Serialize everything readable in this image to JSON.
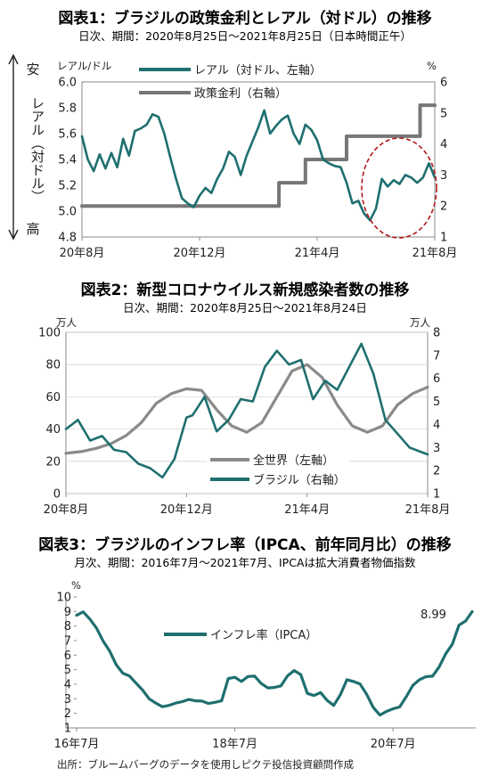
{
  "colors": {
    "teal": "#1f6f6f",
    "gray": "#8a8a8a",
    "darkgray": "#777777",
    "red": "#b01818"
  },
  "chart_data": [
    {
      "type": "line",
      "title": "図表1：ブラジルの政策金利とレアル（対ドル）の推移",
      "subtitle": "日次、期間：2020年8月25日～2021年8月25日（日本時間正午）",
      "ylabel_left": "レアル/ドル",
      "ylabel_right": "%",
      "side_label_top": "安",
      "side_label_mid": "レアル（対ドル）",
      "side_label_bottom": "高",
      "ylim_left": [
        4.8,
        6.0
      ],
      "yticks_left": [
        "6.0",
        "5.8",
        "5.6",
        "5.4",
        "5.2",
        "5.0",
        "4.8"
      ],
      "ylim_right": [
        1,
        6
      ],
      "yticks_right": [
        "6",
        "5",
        "4",
        "3",
        "2",
        "1"
      ],
      "xlim": [
        0,
        12
      ],
      "xticks": [
        {
          "x": 0,
          "label": "20年8月"
        },
        {
          "x": 4,
          "label": "20年12月"
        },
        {
          "x": 8,
          "label": "21年4月"
        },
        {
          "x": 12,
          "label": "21年8月"
        }
      ],
      "series": [
        {
          "name": "レアル（対ドル、左軸）",
          "axis": "left",
          "x": [
            0,
            0.2,
            0.4,
            0.6,
            0.8,
            1.0,
            1.2,
            1.4,
            1.6,
            1.8,
            2.0,
            2.2,
            2.4,
            2.6,
            2.8,
            3.0,
            3.2,
            3.4,
            3.6,
            3.8,
            4.0,
            4.2,
            4.4,
            4.6,
            4.8,
            5.0,
            5.2,
            5.4,
            5.6,
            5.8,
            6.0,
            6.2,
            6.4,
            6.6,
            6.8,
            7.0,
            7.2,
            7.4,
            7.6,
            7.8,
            8.0,
            8.2,
            8.4,
            8.6,
            8.8,
            9.0,
            9.2,
            9.4,
            9.6,
            9.8,
            10.0,
            10.2,
            10.4,
            10.6,
            10.8,
            11.0,
            11.2,
            11.4,
            11.6,
            11.8,
            12.0
          ],
          "values": [
            5.58,
            5.4,
            5.31,
            5.44,
            5.33,
            5.45,
            5.34,
            5.56,
            5.43,
            5.62,
            5.64,
            5.67,
            5.75,
            5.73,
            5.6,
            5.42,
            5.25,
            5.1,
            5.06,
            5.03,
            5.12,
            5.18,
            5.14,
            5.25,
            5.33,
            5.46,
            5.42,
            5.28,
            5.43,
            5.54,
            5.65,
            5.78,
            5.6,
            5.66,
            5.71,
            5.74,
            5.6,
            5.52,
            5.67,
            5.63,
            5.55,
            5.4,
            5.37,
            5.35,
            5.34,
            5.22,
            5.06,
            5.08,
            4.98,
            4.93,
            5.02,
            5.25,
            5.19,
            5.24,
            5.21,
            5.28,
            5.26,
            5.22,
            5.26,
            5.37,
            5.26
          ]
        },
        {
          "name": "政策金利（右軸）",
          "axis": "right",
          "x": [
            0,
            6.7,
            6.7,
            7.6,
            7.6,
            9.0,
            9.0,
            10.4,
            10.4,
            11.5,
            11.5,
            12.0
          ],
          "values": [
            2.0,
            2.0,
            2.75,
            2.75,
            3.5,
            3.5,
            4.25,
            4.25,
            4.25,
            4.25,
            5.25,
            5.25
          ]
        }
      ]
    },
    {
      "type": "line",
      "title": "図表2：新型コロナウイルス新規感染者数の推移",
      "subtitle": "日次、期間：2020年8月25日～2021年8月24日",
      "ylabel_left": "万人",
      "ylabel_right": "万人",
      "ylim_left": [
        0,
        100
      ],
      "yticks_left": [
        "100",
        "80",
        "60",
        "40",
        "20",
        "0"
      ],
      "ylim_right": [
        1,
        8
      ],
      "yticks_right": [
        "8",
        "7",
        "6",
        "5",
        "4",
        "3",
        "2",
        "1"
      ],
      "xlim": [
        0,
        12
      ],
      "xticks": [
        {
          "x": 0,
          "label": "20年8月"
        },
        {
          "x": 4,
          "label": "20年12月"
        },
        {
          "x": 8,
          "label": "21年4月"
        },
        {
          "x": 12,
          "label": "21年8月"
        }
      ],
      "series": [
        {
          "name": "全世界（左軸）",
          "axis": "left",
          "x": [
            0,
            0.5,
            1.0,
            1.5,
            2.0,
            2.5,
            3.0,
            3.5,
            4.0,
            4.5,
            5.0,
            5.5,
            6.0,
            6.5,
            7.0,
            7.5,
            8.0,
            8.5,
            9.0,
            9.5,
            10.0,
            10.5,
            11.0,
            11.5,
            12.0
          ],
          "values": [
            25,
            26,
            28,
            31,
            36,
            44,
            56,
            62,
            65,
            64,
            52,
            42,
            38,
            44,
            60,
            76,
            80,
            72,
            55,
            42,
            38,
            42,
            55,
            62,
            66
          ]
        },
        {
          "name": "ブラジル（右軸）",
          "axis": "right",
          "x": [
            0,
            0.4,
            0.8,
            1.2,
            1.6,
            2.0,
            2.4,
            2.8,
            3.2,
            3.6,
            4.0,
            4.2,
            4.6,
            5.0,
            5.4,
            5.8,
            6.2,
            6.6,
            7.0,
            7.4,
            7.8,
            8.2,
            8.6,
            9.0,
            9.4,
            9.8,
            10.2,
            10.6,
            11.0,
            11.4,
            11.8,
            12.0
          ],
          "values": [
            3.8,
            4.2,
            3.3,
            3.5,
            2.9,
            2.8,
            2.3,
            2.1,
            1.7,
            2.5,
            4.3,
            4.4,
            5.2,
            3.7,
            4.2,
            5.1,
            5.0,
            6.5,
            7.2,
            6.6,
            6.8,
            5.1,
            5.9,
            5.5,
            6.5,
            7.5,
            6.2,
            4.2,
            3.6,
            3.0,
            2.8,
            2.7
          ]
        }
      ]
    },
    {
      "type": "line",
      "title": "図表3：ブラジルのインフレ率（IPCA、前年同月比）の推移",
      "subtitle": "月次、期間：2016年7月～2021年7月、IPCAは拡大消費者物価指数",
      "ylabel_left": "%",
      "ylim_left": [
        1,
        10
      ],
      "yticks_left": [
        "10",
        "9",
        "8",
        "7",
        "6",
        "5",
        "4",
        "3",
        "2",
        "1"
      ],
      "xlim": [
        0,
        60
      ],
      "xticks": [
        {
          "x": 0,
          "label": "16年7月"
        },
        {
          "x": 24,
          "label": "18年7月"
        },
        {
          "x": 48,
          "label": "20年7月"
        }
      ],
      "annotation": "8.99",
      "series": [
        {
          "name": "インフレ率（IPCA）",
          "axis": "left",
          "x": [
            0,
            1,
            2,
            3,
            4,
            5,
            6,
            7,
            8,
            9,
            10,
            11,
            12,
            13,
            14,
            15,
            16,
            17,
            18,
            19,
            20,
            21,
            22,
            23,
            24,
            25,
            26,
            27,
            28,
            29,
            30,
            31,
            32,
            33,
            34,
            35,
            36,
            37,
            38,
            39,
            40,
            41,
            42,
            43,
            44,
            45,
            46,
            47,
            48,
            49,
            50,
            51,
            52,
            53,
            54,
            55,
            56,
            57,
            58,
            59,
            60
          ],
          "values": [
            8.74,
            8.97,
            8.48,
            7.87,
            6.99,
            6.29,
            5.35,
            4.76,
            4.57,
            4.08,
            3.6,
            3.0,
            2.71,
            2.46,
            2.54,
            2.7,
            2.8,
            2.95,
            2.86,
            2.84,
            2.68,
            2.76,
            2.86,
            4.39,
            4.48,
            4.19,
            4.53,
            4.56,
            4.05,
            3.75,
            3.78,
            3.89,
            4.58,
            4.94,
            4.66,
            3.37,
            3.22,
            3.43,
            2.89,
            2.54,
            3.27,
            4.31,
            4.19,
            4.01,
            3.3,
            2.4,
            1.88,
            2.13,
            2.31,
            2.44,
            3.14,
            3.92,
            4.31,
            4.52,
            4.56,
            5.2,
            6.1,
            6.76,
            8.06,
            8.35,
            8.99
          ]
        }
      ]
    }
  ],
  "footer": "出所：ブルームバーグのデータを使用しピクテ投信投資顧問作成"
}
